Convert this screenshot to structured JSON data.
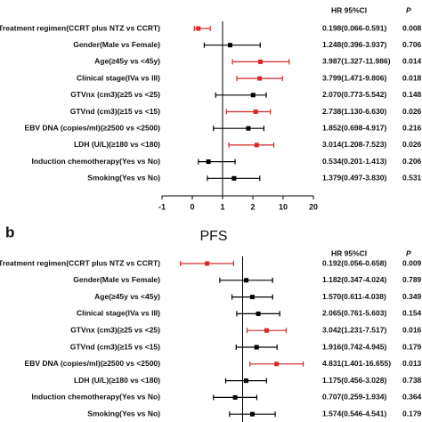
{
  "chart_data": [
    {
      "type": "forest",
      "ci_header": "HR 95%CI",
      "p_header": "P",
      "categories": [
        "Treatment regimen(CCRT plus NTZ vs CCRT)",
        "Gender(Male vs Female)",
        "Age(≥45y vs <45y)",
        "Clinical stage(IVa vs III)",
        "GTVnx (cm3)(≥25 vs <25)",
        "GTVnd (cm3)(≥15 vs <15)",
        "EBV DNA (copies/ml)(≥2500 vs <2500)",
        "LDH (U/L)(≥180 vs <180)",
        "Induction chemotherapy(Yes vs No)",
        "Smoking(Yes vs No)"
      ],
      "values": [
        0.198,
        1.248,
        3.987,
        3.799,
        2.07,
        2.738,
        1.852,
        3.014,
        0.534,
        1.379
      ],
      "lower": [
        0.066,
        0.396,
        1.327,
        1.471,
        0.773,
        1.13,
        0.698,
        1.208,
        0.201,
        0.497
      ],
      "upper": [
        0.591,
        3.937,
        11.986,
        9.806,
        5.542,
        6.63,
        4.917,
        7.523,
        1.413,
        3.83
      ],
      "value_labels": [
        "0.198(0.066-0.591)",
        "1.248(0.396-3.937)",
        "3.987(1.327-11.986)",
        "3.799(1.471-9.806)",
        "2.070(0.773-5.542)",
        "2.738(1.130-6.630)",
        "1.852(0.698-4.917)",
        "3.014(1.208-7.523)",
        "0.534(0.201-1.413)",
        "1.379(0.497-3.830)"
      ],
      "p_values": [
        0.008,
        0.706,
        0.014,
        0.018,
        0.148,
        0.026,
        0.216,
        0.026,
        0.206,
        0.531
      ],
      "colors": [
        "#d42a2a",
        "#000000",
        "#d42a2a",
        "#d42a2a",
        "#000000",
        "#d42a2a",
        "#000000",
        "#d42a2a",
        "#000000",
        "#000000"
      ],
      "reference_line": 1,
      "xlim": [
        -1,
        20
      ],
      "xticks": [
        -1,
        0,
        1,
        2,
        10,
        20
      ]
    },
    {
      "type": "forest",
      "label": "b",
      "title": "PFS",
      "ci_header": "HR 95%CI",
      "p_header": "P",
      "categories": [
        "Treatment regimen(CCRT plus NTZ vs CCRT)",
        "Gender(Male vs Female)",
        "Age(≥45y vs <45y)",
        "Clinical stage(IVa vs III)",
        "GTVnx (cm3)(≥25 vs <25)",
        "GTVnd (cm3)(≥15 vs <15)",
        "EBV DNA (copies/ml)(≥2500 vs <2500)",
        "LDH (U/L)(≥180 vs <180)",
        "Induction chemotherapy(Yes vs No)",
        "Smoking(Yes vs No)"
      ],
      "values": [
        0.192,
        1.182,
        1.57,
        2.065,
        3.042,
        1.916,
        4.831,
        1.175,
        0.707,
        1.574
      ],
      "lower": [
        0.056,
        0.347,
        0.611,
        0.761,
        1.231,
        0.742,
        1.401,
        0.456,
        0.259,
        0.546
      ],
      "upper": [
        0.658,
        4.024,
        4.038,
        5.603,
        7.517,
        4.945,
        16.655,
        3.028,
        1.934,
        4.541
      ],
      "value_labels": [
        "0.192(0.056-0.658)",
        "1.182(0.347-4.024)",
        "1.570(0.611-4.038)",
        "2.065(0.761-5.603)",
        "3.042(1.231-7.517)",
        "1.916(0.742-4.945)",
        "4.831(1.401-16.655)",
        "1.175(0.456-3.028)",
        "0.707(0.259-1.934)",
        "1.574(0.546-4.541)"
      ],
      "p_values": [
        0.009,
        0.789,
        0.349,
        0.154,
        0.016,
        0.179,
        0.013,
        0.738,
        0.364,
        0.179
      ],
      "colors": [
        "#d42a2a",
        "#000000",
        "#000000",
        "#000000",
        "#d42a2a",
        "#000000",
        "#d42a2a",
        "#000000",
        "#000000",
        "#000000"
      ],
      "reference_line": 1,
      "log_scale": true,
      "xlim": [
        0.05,
        20
      ]
    }
  ]
}
